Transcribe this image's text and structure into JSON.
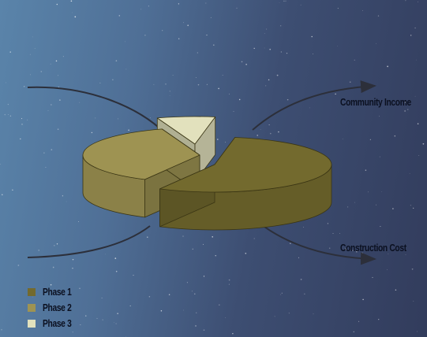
{
  "chart_data": {
    "type": "pie",
    "title": "",
    "categories": [
      "Phase 1",
      "Phase 2",
      "Phase 3"
    ],
    "values": [
      55,
      37,
      8
    ],
    "colors": [
      "#736a2e",
      "#9e9352",
      "#e2e1bd"
    ],
    "exploded": true,
    "style": "3d",
    "legend_position": "bottom-left",
    "annotations": [
      "Community Income",
      "Construction Cost"
    ]
  },
  "legend": [
    {
      "label": "Phase 1",
      "color": "#736a2e"
    },
    {
      "label": "Phase 2",
      "color": "#9e9352"
    },
    {
      "label": "Phase 3",
      "color": "#e2e1bd"
    }
  ],
  "annotations": {
    "income": "Community Income",
    "cost": "Construction Cost"
  }
}
